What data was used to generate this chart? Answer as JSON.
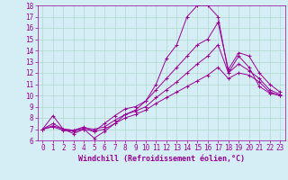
{
  "xlabel": "Windchill (Refroidissement éolien,°C)",
  "bg_color": "#d5eef5",
  "line_color": "#990099",
  "grid_color": "#b0d8cc",
  "xlim": [
    -0.5,
    23.5
  ],
  "ylim": [
    6,
    18
  ],
  "xticks": [
    0,
    1,
    2,
    3,
    4,
    5,
    6,
    7,
    8,
    9,
    10,
    11,
    12,
    13,
    14,
    15,
    16,
    17,
    18,
    19,
    20,
    21,
    22,
    23
  ],
  "yticks": [
    6,
    7,
    8,
    9,
    10,
    11,
    12,
    13,
    14,
    15,
    16,
    17,
    18
  ],
  "series": [
    [
      7.0,
      8.2,
      7.0,
      6.6,
      7.0,
      6.2,
      6.8,
      7.5,
      8.3,
      8.7,
      9.5,
      11.0,
      13.3,
      14.5,
      17.0,
      18.0,
      18.0,
      17.0,
      12.0,
      13.5,
      12.5,
      10.8,
      10.2,
      10.0
    ],
    [
      7.0,
      7.5,
      7.0,
      6.9,
      7.2,
      6.8,
      7.5,
      8.2,
      8.8,
      9.0,
      9.5,
      10.5,
      11.5,
      12.5,
      13.5,
      14.5,
      15.0,
      16.5,
      12.3,
      13.8,
      13.5,
      12.0,
      11.0,
      10.3
    ],
    [
      7.0,
      7.3,
      7.0,
      6.9,
      7.1,
      7.0,
      7.2,
      7.8,
      8.3,
      8.6,
      9.0,
      9.8,
      10.5,
      11.2,
      12.0,
      12.8,
      13.5,
      14.5,
      12.0,
      12.8,
      12.2,
      11.5,
      10.5,
      10.1
    ],
    [
      7.0,
      7.2,
      6.9,
      6.8,
      7.0,
      6.8,
      7.0,
      7.5,
      8.0,
      8.3,
      8.7,
      9.3,
      9.8,
      10.3,
      10.8,
      11.3,
      11.8,
      12.5,
      11.5,
      12.0,
      11.8,
      11.2,
      10.3,
      10.0
    ]
  ]
}
